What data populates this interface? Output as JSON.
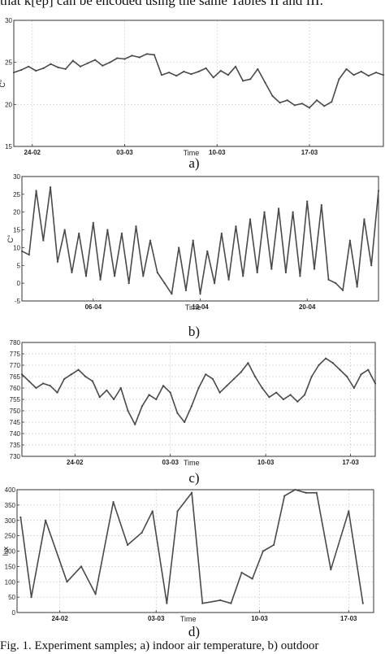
{
  "top_text": "that k[ep] can be encoded using the same Tables II and III.",
  "caption": "Fig. 1. Experiment samples; a) indoor air temperature, b) outdoor",
  "chart_data": [
    {
      "panel": "a)",
      "type": "line",
      "ylabel": "C°",
      "xlabel": "Time",
      "ylim": [
        15,
        30
      ],
      "yticks": [
        15,
        20,
        25,
        30
      ],
      "xlim": [
        0,
        100
      ],
      "xtick_pos": [
        5,
        30,
        55,
        80
      ],
      "xticks": [
        "24-02",
        "03-03",
        "10-03",
        "17-03"
      ],
      "grid": true,
      "color": "#4a4a4a",
      "x": [
        0,
        2,
        4,
        6,
        8,
        10,
        12,
        14,
        16,
        18,
        20,
        22,
        24,
        26,
        28,
        30,
        32,
        34,
        36,
        38,
        40,
        42,
        44,
        46,
        48,
        50,
        52,
        54,
        56,
        58,
        60,
        62,
        64,
        66,
        68,
        70,
        72,
        74,
        76,
        78,
        80,
        82,
        84,
        86,
        88,
        90,
        92,
        94,
        96,
        98,
        100
      ],
      "y": [
        23.8,
        24.1,
        24.5,
        24.0,
        24.3,
        24.8,
        24.4,
        24.2,
        25.2,
        24.5,
        24.9,
        25.3,
        24.6,
        25.0,
        25.5,
        25.4,
        25.8,
        25.6,
        26.0,
        25.9,
        23.5,
        23.8,
        23.4,
        23.9,
        23.6,
        23.9,
        24.3,
        23.2,
        24.0,
        23.5,
        24.5,
        22.8,
        23.0,
        24.2,
        22.6,
        21.0,
        20.2,
        20.5,
        19.9,
        20.1,
        19.6,
        20.5,
        19.8,
        20.3,
        23.0,
        24.2,
        23.5,
        23.9,
        23.4,
        23.8,
        23.5
      ]
    },
    {
      "panel": "b)",
      "type": "line",
      "ylabel": "C°",
      "xlabel": "Time",
      "ylim": [
        -5,
        30
      ],
      "yticks": [
        -5,
        0,
        5,
        10,
        15,
        20,
        25,
        30
      ],
      "xlim": [
        0,
        100
      ],
      "xtick_pos": [
        20,
        50,
        80
      ],
      "xticks": [
        "06-04",
        "13-04",
        "20-04"
      ],
      "grid": false,
      "color": "#4a4a4a",
      "x": [
        0,
        2,
        4,
        6,
        8,
        10,
        12,
        14,
        16,
        18,
        20,
        22,
        24,
        26,
        28,
        30,
        32,
        34,
        36,
        38,
        40,
        42,
        44,
        46,
        48,
        50,
        52,
        54,
        56,
        58,
        60,
        62,
        64,
        66,
        68,
        70,
        72,
        74,
        76,
        78,
        80,
        82,
        84,
        86,
        88,
        90,
        92,
        94,
        96,
        98,
        100
      ],
      "y": [
        9,
        8,
        26,
        12,
        27,
        6,
        15,
        3,
        14,
        2,
        17,
        1,
        15,
        2,
        14,
        0,
        16,
        2,
        12,
        3,
        0,
        -3,
        10,
        -2,
        12,
        -3,
        9,
        0,
        14,
        1,
        16,
        2,
        18,
        3,
        20,
        4,
        21,
        3,
        20,
        2,
        23,
        4,
        22,
        1,
        0,
        -2,
        12,
        -1,
        18,
        5,
        26
      ]
    },
    {
      "panel": "c)",
      "type": "line",
      "ylabel": "",
      "xlabel": "Time",
      "ylim": [
        730,
        780
      ],
      "yticks": [
        730,
        735,
        740,
        745,
        750,
        755,
        760,
        765,
        770,
        775,
        780
      ],
      "xlim": [
        0,
        100
      ],
      "xtick_pos": [
        15,
        42,
        69,
        93
      ],
      "xticks": [
        "24-02",
        "03-03",
        "10-03",
        "17-03"
      ],
      "grid": true,
      "color": "#4a4a4a",
      "x": [
        0,
        2,
        4,
        6,
        8,
        10,
        12,
        14,
        16,
        18,
        20,
        22,
        24,
        26,
        28,
        30,
        32,
        34,
        36,
        38,
        40,
        42,
        44,
        46,
        48,
        50,
        52,
        54,
        56,
        58,
        60,
        62,
        64,
        66,
        68,
        70,
        72,
        74,
        76,
        78,
        80,
        82,
        84,
        86,
        88,
        90,
        92,
        94,
        96,
        98,
        100
      ],
      "y": [
        766,
        763,
        760,
        762,
        761,
        758,
        764,
        766,
        768,
        765,
        763,
        756,
        759,
        755,
        760,
        750,
        744,
        752,
        757,
        755,
        761,
        758,
        749,
        745,
        752,
        760,
        766,
        764,
        758,
        761,
        764,
        767,
        771,
        765,
        760,
        756,
        758,
        755,
        757,
        754,
        757,
        765,
        770,
        773,
        771,
        768,
        765,
        760,
        766,
        768,
        762
      ]
    },
    {
      "panel": "d)",
      "type": "line",
      "ylabel": "lux",
      "xlabel": "Time",
      "ylim": [
        0,
        400
      ],
      "yticks": [
        0,
        50,
        100,
        150,
        200,
        250,
        300,
        350,
        400
      ],
      "xlim": [
        0,
        100
      ],
      "xtick_pos": [
        12,
        39,
        68,
        93
      ],
      "xticks": [
        "24-02",
        "03-03",
        "10-03",
        "17-03"
      ],
      "grid": true,
      "color": "#4a4a4a",
      "x": [
        1,
        4,
        8,
        14,
        18,
        22,
        27,
        31,
        35,
        38,
        42,
        45,
        49,
        52,
        57,
        60,
        63,
        66,
        69,
        72,
        75,
        78,
        81,
        84,
        88,
        93,
        97
      ],
      "y": [
        310,
        50,
        300,
        100,
        150,
        60,
        360,
        220,
        260,
        330,
        30,
        330,
        390,
        30,
        40,
        30,
        130,
        110,
        200,
        220,
        380,
        400,
        390,
        390,
        140,
        330,
        30
      ]
    }
  ]
}
